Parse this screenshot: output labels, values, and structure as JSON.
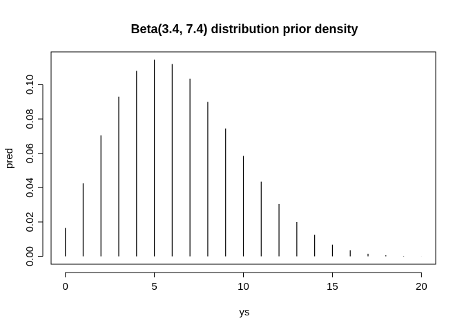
{
  "chart_data": {
    "type": "bar",
    "style": "histogram-spikes",
    "title": "Beta(3.4, 7.4) distribution prior density",
    "xlabel": "ys",
    "ylabel": "pred",
    "x": [
      0,
      1,
      2,
      3,
      4,
      5,
      6,
      7,
      8,
      9,
      10,
      11,
      12,
      13,
      14,
      15,
      16,
      17,
      18,
      19,
      20
    ],
    "values": [
      0.0165,
      0.0425,
      0.0705,
      0.093,
      0.108,
      0.1145,
      0.112,
      0.1035,
      0.09,
      0.0745,
      0.0585,
      0.0435,
      0.0305,
      0.02,
      0.0125,
      0.0068,
      0.0035,
      0.0015,
      0.0006,
      0.0002,
      4e-05
    ],
    "xlim": [
      -0.8,
      20.8
    ],
    "ylim": [
      -0.0046,
      0.1191
    ],
    "xticks": [
      0,
      5,
      10,
      15,
      20
    ],
    "xtick_labels": [
      "0",
      "5",
      "10",
      "15",
      "20"
    ],
    "yticks": [
      0.0,
      0.02,
      0.04,
      0.06,
      0.08,
      0.1
    ],
    "ytick_labels": [
      "0.00",
      "0.02",
      "0.04",
      "0.06",
      "0.08",
      "0.10"
    ],
    "grid": false,
    "line_color": "#000000"
  }
}
